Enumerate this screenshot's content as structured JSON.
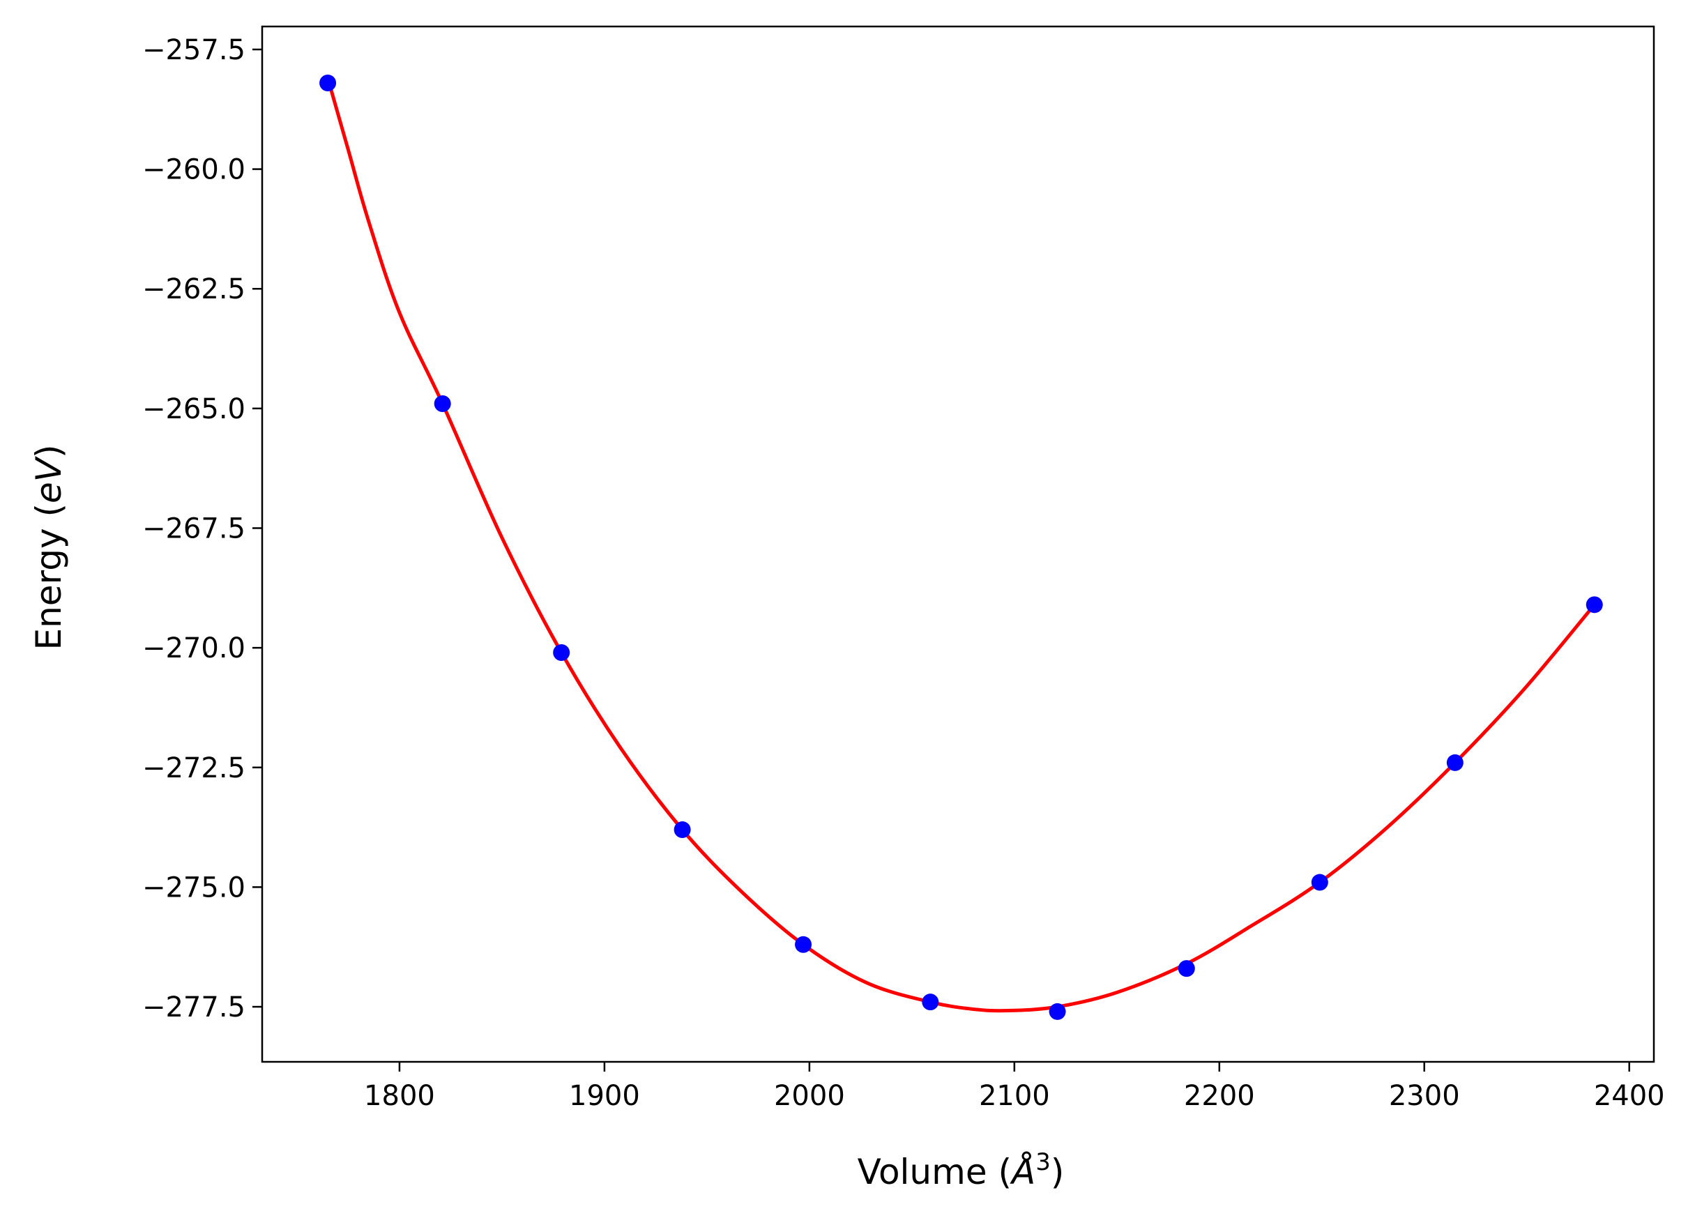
{
  "chart_data": {
    "type": "scatter",
    "xlabel": {
      "text": "Volume (",
      "italic": "Å",
      "sup": "3",
      "close": ")"
    },
    "ylabel": {
      "text": "Energy (",
      "italic": "eV",
      "close": ")"
    },
    "xlim": [
      1733,
      2412
    ],
    "ylim": [
      -278.65,
      -257.02
    ],
    "xticks": [
      1800,
      1900,
      2000,
      2100,
      2200,
      2300,
      2400
    ],
    "xtick_labels": [
      "1800",
      "1900",
      "2000",
      "2100",
      "2200",
      "2300",
      "2400"
    ],
    "yticks": [
      -257.5,
      -260.0,
      -262.5,
      -265.0,
      -267.5,
      -270.0,
      -272.5,
      -275.0,
      -277.5
    ],
    "ytick_labels": [
      "−257.5",
      "−260.0",
      "−262.5",
      "−265.0",
      "−267.5",
      "−270.0",
      "−272.5",
      "−275.0",
      "−277.5"
    ],
    "grid": false,
    "points": {
      "color": "#0000ff",
      "x": [
        1765,
        1821,
        1879,
        1938,
        1997,
        2059,
        2121,
        2184,
        2249,
        2315,
        2383
      ],
      "y": [
        -258.2,
        -264.9,
        -270.1,
        -273.8,
        -276.2,
        -277.4,
        -277.6,
        -276.7,
        -274.9,
        -272.4,
        -269.1
      ]
    },
    "fit": {
      "color": "#ff0000",
      "x": [
        1765,
        1775,
        1785,
        1800,
        1821,
        1850,
        1879,
        1908,
        1938,
        1967,
        1997,
        2028,
        2059,
        2080,
        2097,
        2121,
        2150,
        2184,
        2216,
        2249,
        2282,
        2315,
        2349,
        2383
      ],
      "y": [
        -258.1,
        -259.6,
        -261.1,
        -263.0,
        -264.9,
        -267.7,
        -270.1,
        -272.1,
        -273.8,
        -275.1,
        -276.2,
        -277.0,
        -277.4,
        -277.55,
        -277.58,
        -277.5,
        -277.2,
        -276.6,
        -275.8,
        -274.9,
        -273.75,
        -272.4,
        -270.85,
        -269.1
      ]
    }
  }
}
